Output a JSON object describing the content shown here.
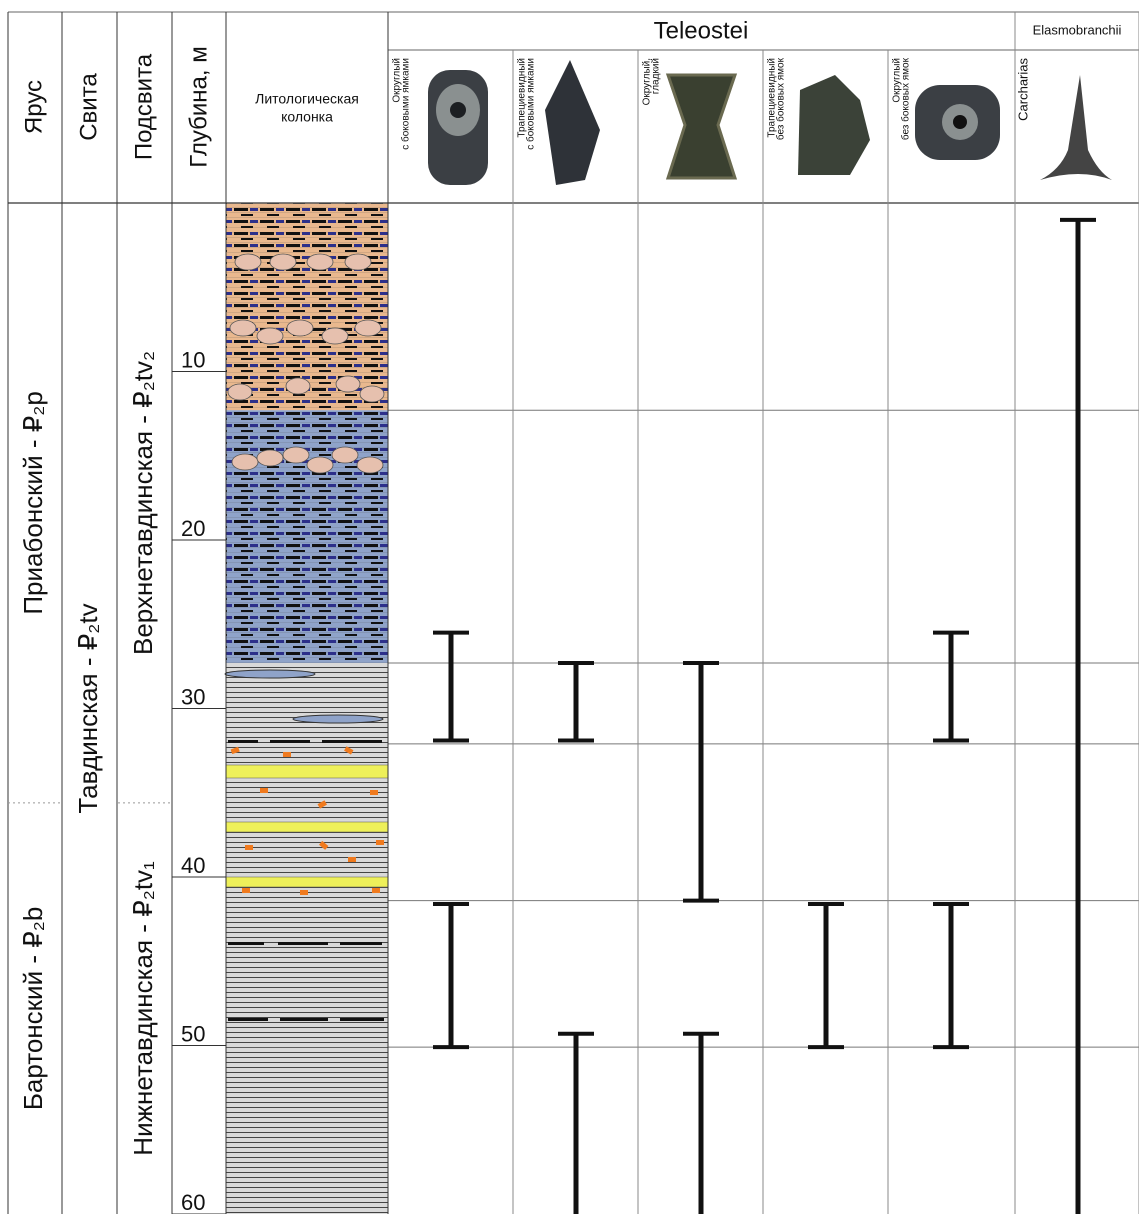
{
  "header": {
    "stage": "Ярус",
    "suite": "Свита",
    "subsuite": "Подсвита",
    "depth": "Глубина, м",
    "lithology": [
      "Литологическая",
      "колонка"
    ],
    "teleostei": "Teleostei",
    "elasmobranchii": "Elasmobranchii"
  },
  "depth_lim": [
    0,
    60
  ],
  "depth_ticks": [
    10,
    20,
    30,
    40,
    50,
    60
  ],
  "stages": [
    {
      "label": "Приабонский - ₽₂p",
      "from": 0,
      "to": 35.6
    },
    {
      "label": "Бартонский - ₽₂b",
      "from": 35.6,
      "to": 60
    }
  ],
  "suites": [
    {
      "label": "Тавдинская - ₽₂tv",
      "from": 0,
      "to": 60
    }
  ],
  "subsuites": [
    {
      "label": "Верхнетавдинская - ₽₂tv₂",
      "from": 0,
      "to": 35.6
    },
    {
      "label": "Нижнетавдинская - ₽₂tv₁",
      "from": 35.6,
      "to": 60
    }
  ],
  "lithology": [
    {
      "from": 0,
      "to": 12.3,
      "color": "#e9b88e"
    },
    {
      "from": 12.3,
      "to": 27.3,
      "color": "#8fa3c9"
    },
    {
      "from": 27.3,
      "to": 32.1,
      "color": "#d9d9d9"
    },
    {
      "from": 32.1,
      "to": 41.4,
      "color": "#d9d9d9"
    },
    {
      "from": 41.4,
      "to": 50.1,
      "color": "#d9d9d9"
    },
    {
      "from": 50.1,
      "to": 60,
      "color": "#d9d9d9"
    }
  ],
  "taxa": [
    {
      "label": [
        "Округлый",
        "с боковыми ямками"
      ],
      "ranges": [
        {
          "from": 25.5,
          "to": 31.9
        },
        {
          "from": 41.6,
          "to": 50.1
        }
      ]
    },
    {
      "label": [
        "Трапециевидный",
        "с боковыми ямками"
      ],
      "ranges": [
        {
          "from": 27.3,
          "to": 31.9
        },
        {
          "from": 49.3,
          "to": 60
        }
      ]
    },
    {
      "label": [
        "Округлый,",
        "гладкий"
      ],
      "ranges": [
        {
          "from": 27.3,
          "to": 41.4
        },
        {
          "from": 49.3,
          "to": 60
        }
      ]
    },
    {
      "label": [
        "Трапециевидный",
        "без боковых ямок"
      ],
      "ranges": [
        {
          "from": 41.6,
          "to": 50.1
        }
      ]
    },
    {
      "label": [
        "Округлый",
        "без боковых ямок"
      ],
      "ranges": [
        {
          "from": 25.5,
          "to": 31.9
        },
        {
          "from": 41.6,
          "to": 50.1
        }
      ]
    },
    {
      "label": [
        "Carcharias"
      ],
      "ranges": [
        {
          "from": 1.0,
          "to": 60
        }
      ]
    }
  ]
}
